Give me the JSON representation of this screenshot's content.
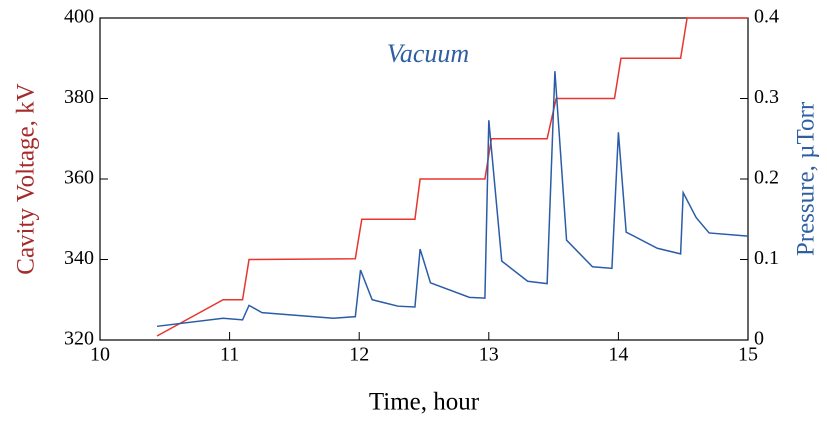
{
  "chart_data": {
    "type": "line",
    "x_label": "Time, hour",
    "y_label": "Cavity Voltage, kV",
    "y2_label": "Pressure, µTorr",
    "annotation": "Vacuum",
    "xlim": [
      10,
      15
    ],
    "xticks": [
      10,
      11,
      12,
      13,
      14,
      15
    ],
    "ylim": [
      320,
      400
    ],
    "yticks": [
      320,
      340,
      360,
      380,
      400
    ],
    "y2lim": [
      0,
      0.4
    ],
    "y2ticks": [
      0,
      0.1,
      0.2,
      0.3,
      0.4
    ],
    "grid": false,
    "y_label_color": "#a52a2a",
    "y2_label_color": "#2e5fa3",
    "series": [
      {
        "name": "Cavity Voltage",
        "color": "#e8352e",
        "axis": "y",
        "x": [
          10.44,
          10.95,
          11.1,
          11.15,
          11.97,
          12.02,
          12.43,
          12.47,
          12.97,
          13.02,
          13.45,
          13.52,
          13.97,
          14.02,
          14.48,
          14.53,
          15
        ],
        "values": [
          321,
          330,
          330,
          340,
          340.2,
          350,
          350,
          360,
          360,
          370,
          370,
          380,
          380,
          390,
          390,
          400,
          400
        ]
      },
      {
        "name": "Pressure",
        "color": "#2a5ca8",
        "axis": "y2",
        "x": [
          10.44,
          10.95,
          11.1,
          11.15,
          11.25,
          11.8,
          11.97,
          12.01,
          12.1,
          12.3,
          12.43,
          12.47,
          12.55,
          12.85,
          12.97,
          13.0,
          13.1,
          13.3,
          13.45,
          13.51,
          13.6,
          13.8,
          13.95,
          14.0,
          14.06,
          14.3,
          14.48,
          14.5,
          14.6,
          14.7,
          15
        ],
        "values": [
          0.017,
          0.027,
          0.025,
          0.043,
          0.034,
          0.027,
          0.029,
          0.087,
          0.05,
          0.042,
          0.041,
          0.113,
          0.071,
          0.053,
          0.052,
          0.273,
          0.098,
          0.073,
          0.07,
          0.334,
          0.124,
          0.091,
          0.089,
          0.258,
          0.134,
          0.114,
          0.107,
          0.183,
          0.152,
          0.133,
          0.129
        ]
      }
    ]
  }
}
